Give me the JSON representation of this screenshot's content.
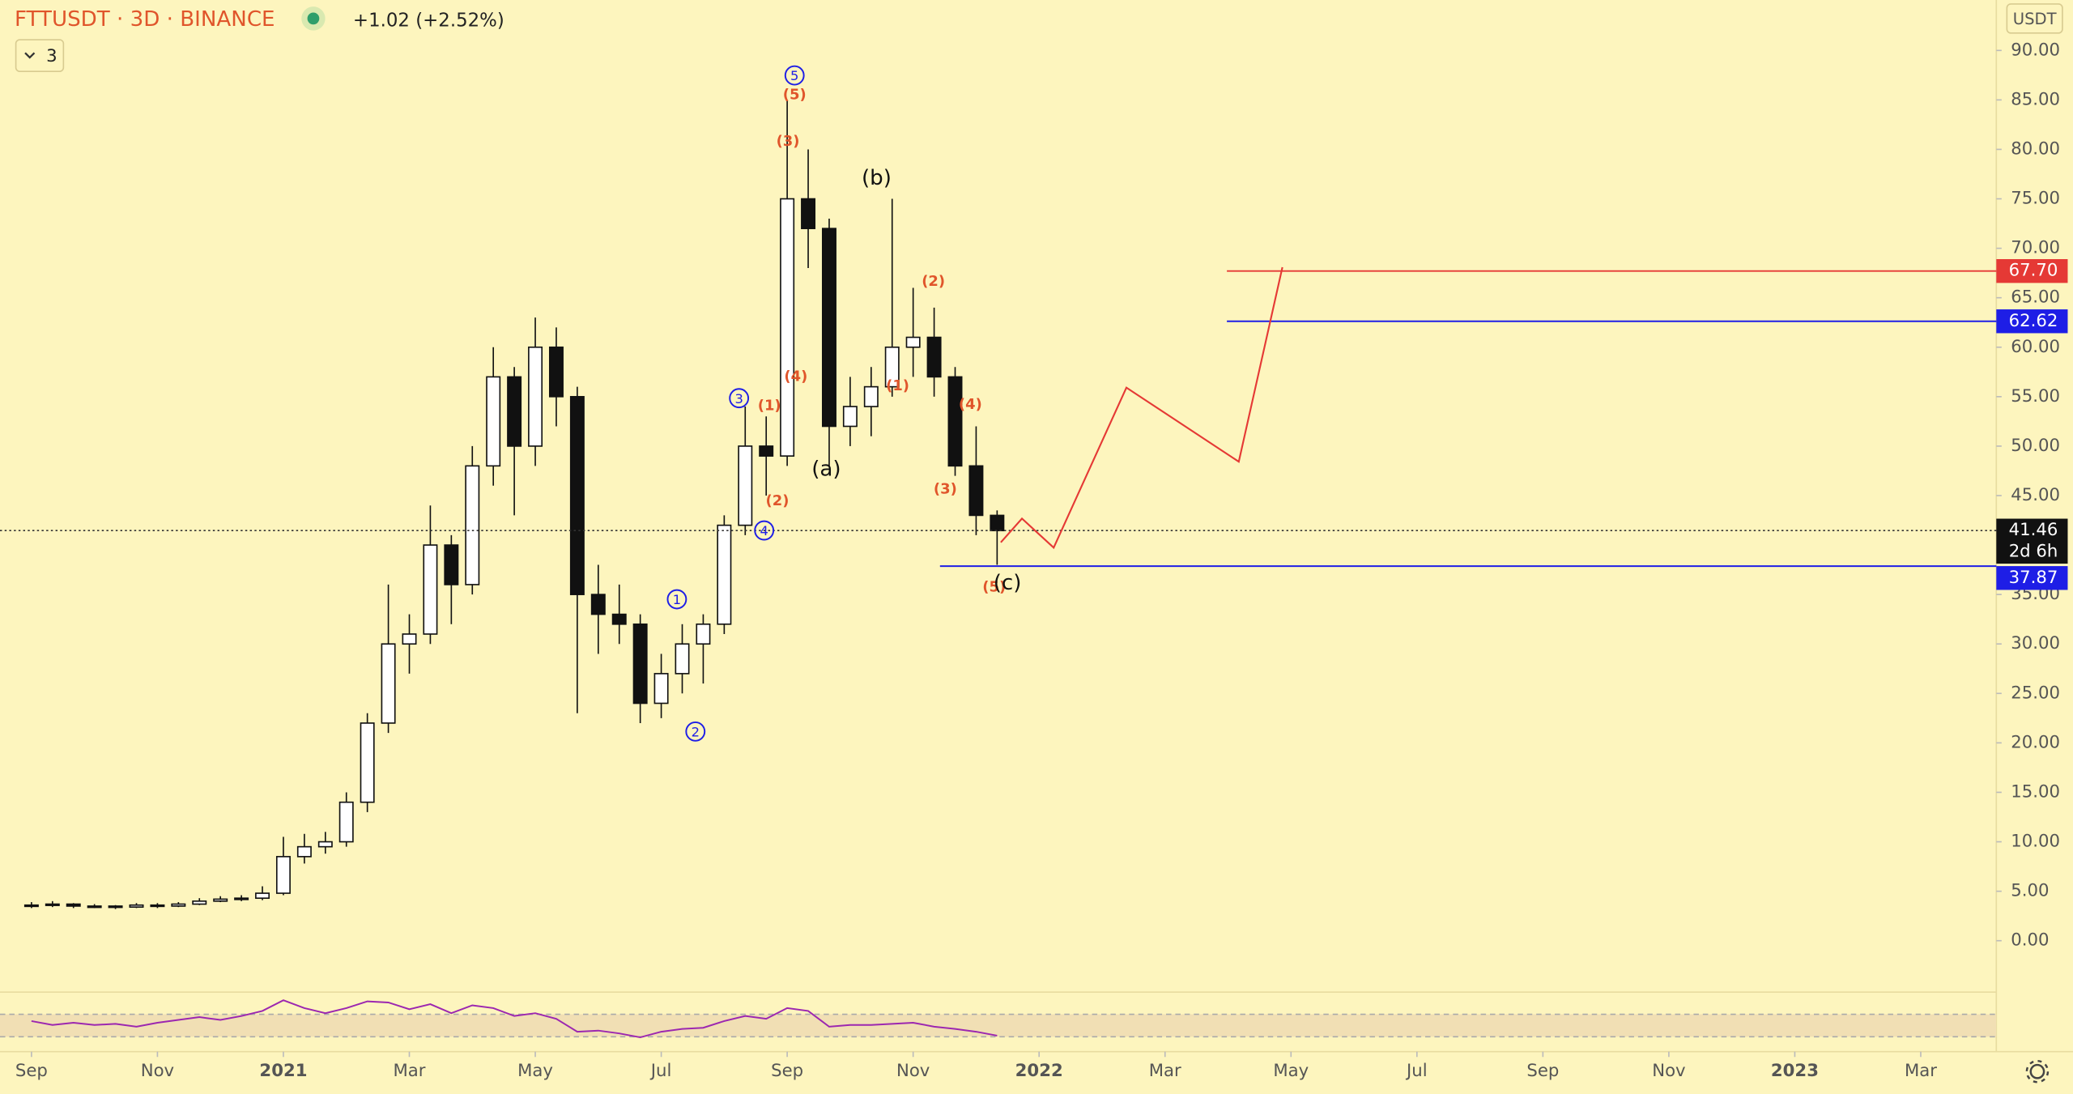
{
  "chart_data": {
    "type": "candlestick",
    "title": "FTTUSDT · 3D · BINANCE",
    "change": "+1.02 (+2.52%)",
    "interval_badge": "3",
    "currency": "USDT",
    "countdown": "2d 6h",
    "ylim": [
      -5.2,
      95.1
    ],
    "yticks": [
      {
        "value": 0,
        "label": "0.00"
      },
      {
        "value": 5,
        "label": "5.00"
      },
      {
        "value": 10,
        "label": "10.00"
      },
      {
        "value": 15,
        "label": "15.00"
      },
      {
        "value": 20,
        "label": "20.00"
      },
      {
        "value": 25,
        "label": "25.00"
      },
      {
        "value": 30,
        "label": "30.00"
      },
      {
        "value": 35,
        "label": "35.00"
      },
      {
        "value": 40,
        "label": "40.00"
      },
      {
        "value": 45,
        "label": "45.00"
      },
      {
        "value": 50,
        "label": "50.00"
      },
      {
        "value": 55,
        "label": "55.00"
      },
      {
        "value": 60,
        "label": "60.00"
      },
      {
        "value": 65,
        "label": "65.00"
      },
      {
        "value": 70,
        "label": "70.00"
      },
      {
        "value": 75,
        "label": "75.00"
      },
      {
        "value": 80,
        "label": "80.00"
      },
      {
        "value": 85,
        "label": "85.00"
      },
      {
        "value": 90,
        "label": "90.00"
      }
    ],
    "xlim": [
      -1.5,
      93.6
    ],
    "xticks": [
      {
        "value": 0,
        "label": "Sep"
      },
      {
        "value": 6,
        "label": "Nov"
      },
      {
        "value": 12,
        "label": "2021"
      },
      {
        "value": 18,
        "label": "Mar"
      },
      {
        "value": 24,
        "label": "May"
      },
      {
        "value": 30,
        "label": "Jul"
      },
      {
        "value": 36,
        "label": "Sep"
      },
      {
        "value": 42,
        "label": "Nov"
      },
      {
        "value": 48,
        "label": "2022"
      },
      {
        "value": 54,
        "label": "Mar"
      },
      {
        "value": 60,
        "label": "May"
      },
      {
        "value": 66,
        "label": "Jul"
      },
      {
        "value": 72,
        "label": "Sep"
      },
      {
        "value": 78,
        "label": "Nov"
      },
      {
        "value": 84,
        "label": "2023"
      },
      {
        "value": 90,
        "label": "Mar"
      }
    ],
    "ohlc": [
      [
        3.5,
        3.9,
        3.3,
        3.6
      ],
      [
        3.6,
        4.0,
        3.4,
        3.7
      ],
      [
        3.7,
        3.8,
        3.3,
        3.5
      ],
      [
        3.5,
        3.7,
        3.3,
        3.5
      ],
      [
        3.5,
        3.6,
        3.2,
        3.4
      ],
      [
        3.4,
        3.8,
        3.3,
        3.6
      ],
      [
        3.6,
        3.8,
        3.3,
        3.5
      ],
      [
        3.5,
        3.9,
        3.4,
        3.7
      ],
      [
        3.7,
        4.3,
        3.6,
        4.0
      ],
      [
        4.0,
        4.5,
        3.9,
        4.2
      ],
      [
        4.2,
        4.6,
        4.0,
        4.3
      ],
      [
        4.3,
        5.5,
        4.1,
        4.8
      ],
      [
        4.8,
        10.5,
        4.6,
        8.5
      ],
      [
        8.5,
        10.8,
        7.8,
        9.5
      ],
      [
        9.5,
        11,
        8.8,
        10
      ],
      [
        10,
        15,
        9.5,
        14
      ],
      [
        14,
        23,
        13,
        22
      ],
      [
        22,
        36,
        21,
        30
      ],
      [
        30,
        33,
        27,
        31
      ],
      [
        31,
        44,
        30,
        40
      ],
      [
        40,
        41,
        32,
        36
      ],
      [
        36,
        50,
        35,
        48
      ],
      [
        48,
        60,
        46,
        57
      ],
      [
        57,
        58,
        43,
        50
      ],
      [
        50,
        63,
        48,
        60
      ],
      [
        60,
        62,
        52,
        55
      ],
      [
        55,
        56,
        23,
        35
      ],
      [
        35,
        38,
        29,
        33
      ],
      [
        33,
        36,
        30,
        32
      ],
      [
        32,
        33,
        22,
        24
      ],
      [
        24,
        29,
        22.5,
        27
      ],
      [
        27,
        32,
        25,
        30
      ],
      [
        30,
        33,
        26,
        32
      ],
      [
        32,
        43,
        31,
        42
      ],
      [
        42,
        54,
        41,
        50
      ],
      [
        50,
        53,
        45,
        49
      ],
      [
        49,
        85,
        48,
        75
      ],
      [
        75,
        80,
        68,
        72
      ],
      [
        72,
        73,
        48,
        52
      ],
      [
        52,
        57,
        50,
        54
      ],
      [
        54,
        58,
        51,
        56
      ],
      [
        56,
        75,
        55,
        60
      ],
      [
        60,
        66,
        57,
        61
      ],
      [
        61,
        64,
        55,
        57
      ],
      [
        57,
        58,
        47,
        48
      ],
      [
        48,
        52,
        41,
        43
      ],
      [
        43,
        43.5,
        38,
        41.46
      ]
    ],
    "current_price": {
      "value": 41.46,
      "label": "41.46"
    },
    "levels": [
      {
        "value": 67.7,
        "label": "67.70",
        "color": "#e53935"
      },
      {
        "value": 62.62,
        "label": "62.62",
        "color": "#1e1ee6"
      },
      {
        "value": 37.87,
        "label": "37.87",
        "color": "#1e1ee6"
      }
    ],
    "rsi": {
      "color": "#9c27b0",
      "ylim": [
        0,
        100
      ],
      "band": [
        30,
        70
      ],
      "values": [
        58,
        51,
        55,
        51,
        53,
        48,
        55,
        60,
        65,
        60,
        67,
        76,
        95,
        81,
        72,
        81,
        93,
        91,
        79,
        88,
        72,
        86,
        81,
        67,
        72,
        62,
        39,
        41,
        36,
        29,
        39,
        44,
        46,
        58,
        67,
        62,
        81,
        76,
        48,
        51,
        51,
        53,
        55,
        48,
        44,
        39,
        32
      ]
    },
    "wave_labels_circled": [
      "1",
      "2",
      "3",
      "4",
      "5"
    ],
    "wave_labels": [
      "(5)",
      "(3)",
      "(4)",
      "(1)",
      "(2)",
      "(1)",
      "(2)",
      "(4)",
      "(3)",
      "(5)"
    ],
    "corrective_labels": [
      "(b)",
      "(a)",
      "(c)"
    ]
  }
}
